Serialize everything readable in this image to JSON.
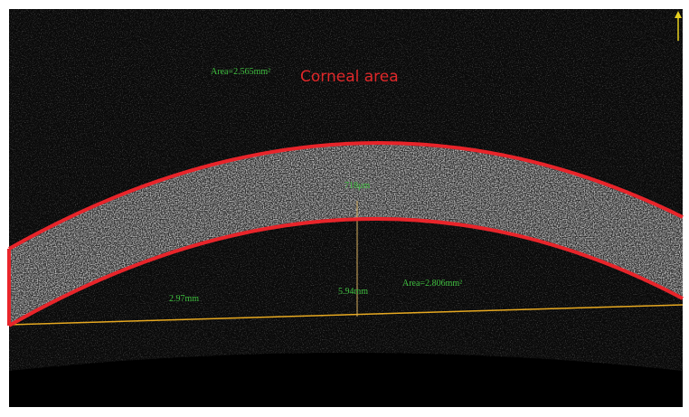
{
  "annotations": {
    "upper_area": "Area=2.565mm²",
    "label": "Corneal area",
    "thickness": "718μm",
    "depth": "5.94mm",
    "half_width": "2.97mm",
    "lower_area": "Area=2.806mm²"
  }
}
